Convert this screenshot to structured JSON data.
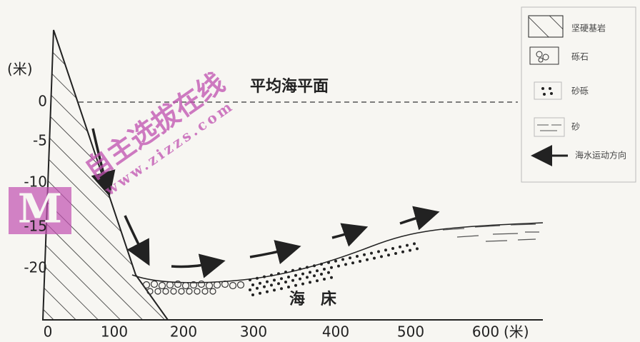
{
  "y_axis": {
    "unit": "(米)",
    "ticks": [
      "0",
      "-5",
      "-10",
      "-15",
      "-20"
    ]
  },
  "x_axis": {
    "ticks": [
      "0",
      "100",
      "200",
      "300",
      "400",
      "500",
      "600"
    ],
    "unit": "(米)"
  },
  "labels": {
    "sea_level": "平均海平面",
    "seabed": "海　床"
  },
  "legend": [
    "坚硬基岩",
    "砾石",
    "砂砾",
    "砂",
    "海水运动方向"
  ],
  "watermark": {
    "text": "自主选拔在线",
    "url": "www.zizzs.com",
    "logo": "M"
  }
}
